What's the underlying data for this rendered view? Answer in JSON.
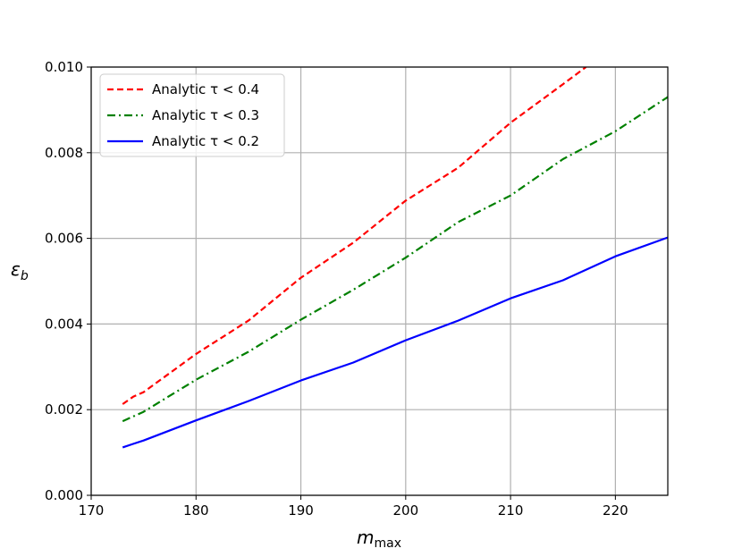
{
  "chart_data": {
    "type": "line",
    "title": "",
    "xlabel": {
      "main": "m",
      "sub": "max"
    },
    "ylabel": {
      "main": "ε",
      "sub": "b"
    },
    "xlim": [
      170,
      225
    ],
    "ylim": [
      0.0,
      0.01
    ],
    "xticks": [
      170,
      180,
      190,
      200,
      210,
      220
    ],
    "xtick_labels": [
      "170",
      "180",
      "190",
      "200",
      "210",
      "220"
    ],
    "yticks": [
      0.0,
      0.002,
      0.004,
      0.006,
      0.008,
      0.01
    ],
    "ytick_labels": [
      "0.000",
      "0.002",
      "0.004",
      "0.006",
      "0.008",
      "0.010"
    ],
    "grid": true,
    "legend_position": "top-left",
    "series": [
      {
        "legend_label": "Analytic τ < 0.4",
        "color": "#ff0000",
        "style": "dashed",
        "x": [
          173,
          174,
          175,
          180,
          185,
          190,
          195,
          200,
          205,
          210,
          215,
          217.2
        ],
        "y": [
          0.00213,
          0.0023,
          0.00241,
          0.0033,
          0.00408,
          0.00508,
          0.0059,
          0.00688,
          0.00765,
          0.0087,
          0.0096,
          0.01
        ]
      },
      {
        "legend_label": "Analytic τ < 0.3",
        "color": "#008000",
        "style": "dashdot",
        "x": [
          173,
          175,
          180,
          185,
          190,
          195,
          200,
          205,
          210,
          215,
          220,
          225
        ],
        "y": [
          0.00173,
          0.00195,
          0.0027,
          0.00335,
          0.0041,
          0.0048,
          0.00555,
          0.00638,
          0.007,
          0.00785,
          0.0085,
          0.0093
        ]
      },
      {
        "legend_label": "Analytic τ < 0.2",
        "color": "#0000ff",
        "style": "solid",
        "x": [
          173,
          174,
          175,
          180,
          185,
          190,
          195,
          200,
          205,
          210,
          215,
          220,
          225
        ],
        "y": [
          0.00112,
          0.0012,
          0.00128,
          0.00175,
          0.0022,
          0.00268,
          0.0031,
          0.00362,
          0.00408,
          0.0046,
          0.00502,
          0.00558,
          0.00602
        ]
      }
    ]
  }
}
